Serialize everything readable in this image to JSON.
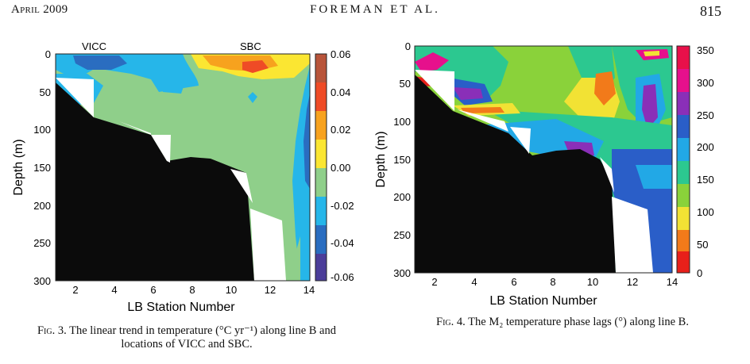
{
  "header": {
    "left": "April 2009",
    "center": "FOREMAN ET AL.",
    "page": "815"
  },
  "fig3": {
    "ylabel": "Depth (m)",
    "xlabel": "LB Station Number",
    "top_labels": [
      "VICC",
      "SBC"
    ],
    "yticks": [
      "0",
      "50",
      "100",
      "150",
      "200",
      "250",
      "300"
    ],
    "xticks": [
      "2",
      "4",
      "6",
      "8",
      "10",
      "12",
      "14"
    ],
    "cbar_ticks": [
      "0.06",
      "0.04",
      "0.02",
      "0.00",
      "-0.02",
      "-0.04",
      "-0.06"
    ],
    "cbar_colors": [
      "#b8543a",
      "#ef4b26",
      "#f7a21e",
      "#fbe632",
      "#8fcf8a",
      "#26b6e9",
      "#2a6dc0",
      "#4b3d99"
    ],
    "caption_fig": "Fig. 3.",
    "caption_text": "The linear trend in temperature (°C yr⁻¹) along line B and",
    "caption_text2": "locations of VICC and SBC."
  },
  "fig4": {
    "ylabel": "Depth (m)",
    "xlabel": "LB Station Number",
    "yticks": [
      "0",
      "50",
      "100",
      "150",
      "200",
      "250",
      "300"
    ],
    "xticks": [
      "2",
      "4",
      "6",
      "8",
      "10",
      "12",
      "14"
    ],
    "cbar_ticks": [
      "350",
      "300",
      "250",
      "200",
      "150",
      "100",
      "50",
      "0"
    ],
    "cbar_colors": [
      "#e8104a",
      "#e6108c",
      "#8a2fb8",
      "#2a5ec8",
      "#22a8e6",
      "#2cc890",
      "#8ad23a",
      "#f2e234",
      "#f27a1a",
      "#e8201a"
    ],
    "caption_fig": "Fig. 4.",
    "caption_text": "The M₂ temperature phase lags (°) along line B."
  }
}
